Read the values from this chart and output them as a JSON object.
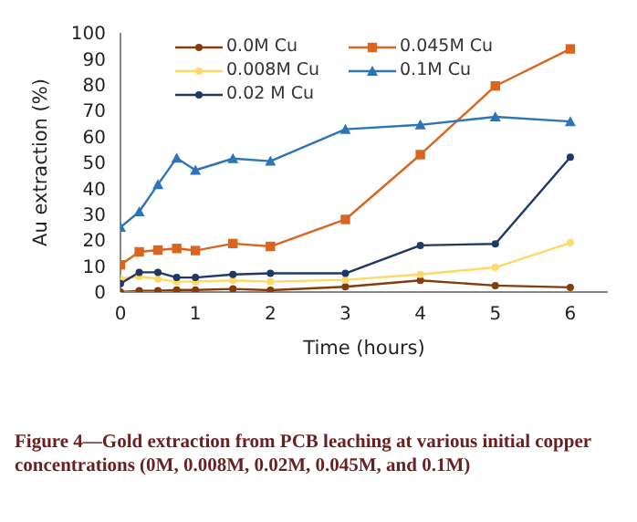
{
  "chart_data": {
    "type": "line",
    "xlabel": "Time (hours)",
    "ylabel": "Au extraction (%)",
    "x": [
      0,
      0.25,
      0.5,
      0.75,
      1,
      1.5,
      2,
      3,
      4,
      5,
      6
    ],
    "series": [
      {
        "name": "0.0M Cu",
        "color": "#843c0c",
        "marker": "circle",
        "values": [
          0,
          0.5,
          0.5,
          0.8,
          0.8,
          1.2,
          0.7,
          2,
          4.5,
          2.5,
          1.8
        ]
      },
      {
        "name": "0.045M Cu",
        "color": "#d9651e",
        "marker": "square",
        "values": [
          10.5,
          15.5,
          16.2,
          16.8,
          16,
          18.7,
          17.6,
          28,
          53,
          79.5,
          93.8
        ]
      },
      {
        "name": "0.008M Cu",
        "color": "#ffd966",
        "marker": "circle",
        "values": [
          5.2,
          6,
          5,
          4,
          4,
          4.5,
          4,
          4.7,
          6.8,
          9.5,
          19
        ]
      },
      {
        "name": "0.1M Cu",
        "color": "#2e75b6",
        "marker": "triangle",
        "values": [
          25,
          31,
          41.5,
          51.7,
          47,
          51.5,
          50.5,
          62.8,
          64.5,
          67.6,
          65.8
        ]
      },
      {
        "name": "0.02 M Cu",
        "color": "#1f3864",
        "marker": "circle",
        "values": [
          3.3,
          7.6,
          7.6,
          5.6,
          5.6,
          6.8,
          7.2,
          7.2,
          18,
          18.6,
          52
        ]
      }
    ],
    "xlim": [
      0,
      6.5
    ],
    "xticks": [
      0,
      1,
      2,
      3,
      4,
      5,
      6
    ],
    "ylim": [
      0,
      100
    ],
    "yticks": [
      0,
      10,
      20,
      30,
      40,
      50,
      60,
      70,
      80,
      90,
      100
    ],
    "grid": false,
    "legend": "top left",
    "annotations": [
      "Figure 4—Gold extraction from PCB leaching at various initial copper concentrations (0M, 0.008M, 0.02M, 0.045M, and 0.1M)"
    ]
  }
}
